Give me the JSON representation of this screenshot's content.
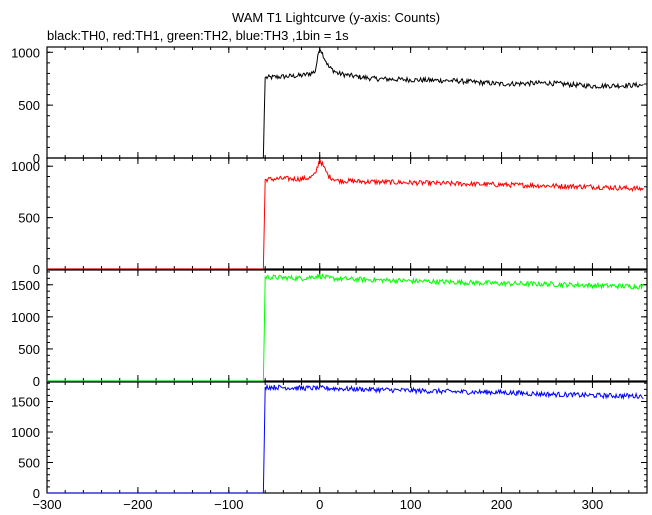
{
  "chart_data": {
    "type": "line",
    "title": "WAM T1 Lightcurve (y-axis: Counts)",
    "subtitle": "black:TH0, red:TH1, green:TH2, blue:TH3 ,1bin = 1s",
    "xlabel": "",
    "ylabel": "",
    "xlim": [
      -300,
      360
    ],
    "x_ticks": [
      -300,
      -200,
      -100,
      0,
      100,
      200,
      300
    ],
    "grid": false,
    "legend": "none",
    "panels": [
      {
        "series": "TH0",
        "color": "#000000",
        "ylim": [
          0,
          1050
        ],
        "y_ticks": [
          0,
          500,
          1000
        ],
        "points": [
          [
            -300,
            0
          ],
          [
            -62,
            0
          ],
          [
            -61,
            410
          ],
          [
            -60,
            760
          ],
          [
            -40,
            770
          ],
          [
            -20,
            780
          ],
          [
            -10,
            800
          ],
          [
            -5,
            820
          ],
          [
            0,
            1050
          ],
          [
            5,
            950
          ],
          [
            10,
            860
          ],
          [
            20,
            800
          ],
          [
            40,
            770
          ],
          [
            60,
            750
          ],
          [
            100,
            740
          ],
          [
            150,
            730
          ],
          [
            200,
            700
          ],
          [
            250,
            710
          ],
          [
            300,
            680
          ],
          [
            355,
            690
          ]
        ]
      },
      {
        "series": "TH1",
        "color": "#ff0000",
        "ylim": [
          0,
          1080
        ],
        "y_ticks": [
          0,
          500,
          1000
        ],
        "points": [
          [
            -300,
            0
          ],
          [
            -62,
            0
          ],
          [
            -61,
            430
          ],
          [
            -60,
            870
          ],
          [
            -40,
            880
          ],
          [
            -20,
            875
          ],
          [
            -10,
            890
          ],
          [
            -5,
            920
          ],
          [
            0,
            1070
          ],
          [
            5,
            980
          ],
          [
            10,
            900
          ],
          [
            20,
            860
          ],
          [
            50,
            850
          ],
          [
            100,
            840
          ],
          [
            150,
            830
          ],
          [
            200,
            820
          ],
          [
            250,
            810
          ],
          [
            300,
            800
          ],
          [
            355,
            780
          ]
        ]
      },
      {
        "series": "TH2",
        "color": "#00ff00",
        "ylim": [
          0,
          1730
        ],
        "y_ticks": [
          0,
          500,
          1000,
          1500
        ],
        "points": [
          [
            -300,
            0
          ],
          [
            -62,
            0
          ],
          [
            -61,
            760
          ],
          [
            -60,
            1620
          ],
          [
            -40,
            1610
          ],
          [
            -20,
            1600
          ],
          [
            0,
            1640
          ],
          [
            10,
            1600
          ],
          [
            50,
            1580
          ],
          [
            100,
            1560
          ],
          [
            150,
            1540
          ],
          [
            200,
            1520
          ],
          [
            250,
            1510
          ],
          [
            300,
            1490
          ],
          [
            355,
            1470
          ]
        ]
      },
      {
        "series": "TH3",
        "color": "#0000ff",
        "ylim": [
          0,
          1820
        ],
        "y_ticks": [
          0,
          500,
          1000,
          1500
        ],
        "points": [
          [
            -300,
            0
          ],
          [
            -62,
            0
          ],
          [
            -61,
            840
          ],
          [
            -60,
            1740
          ],
          [
            -40,
            1730
          ],
          [
            -20,
            1720
          ],
          [
            0,
            1720
          ],
          [
            50,
            1700
          ],
          [
            100,
            1680
          ],
          [
            150,
            1660
          ],
          [
            200,
            1650
          ],
          [
            250,
            1620
          ],
          [
            300,
            1600
          ],
          [
            355,
            1590
          ]
        ]
      }
    ]
  }
}
